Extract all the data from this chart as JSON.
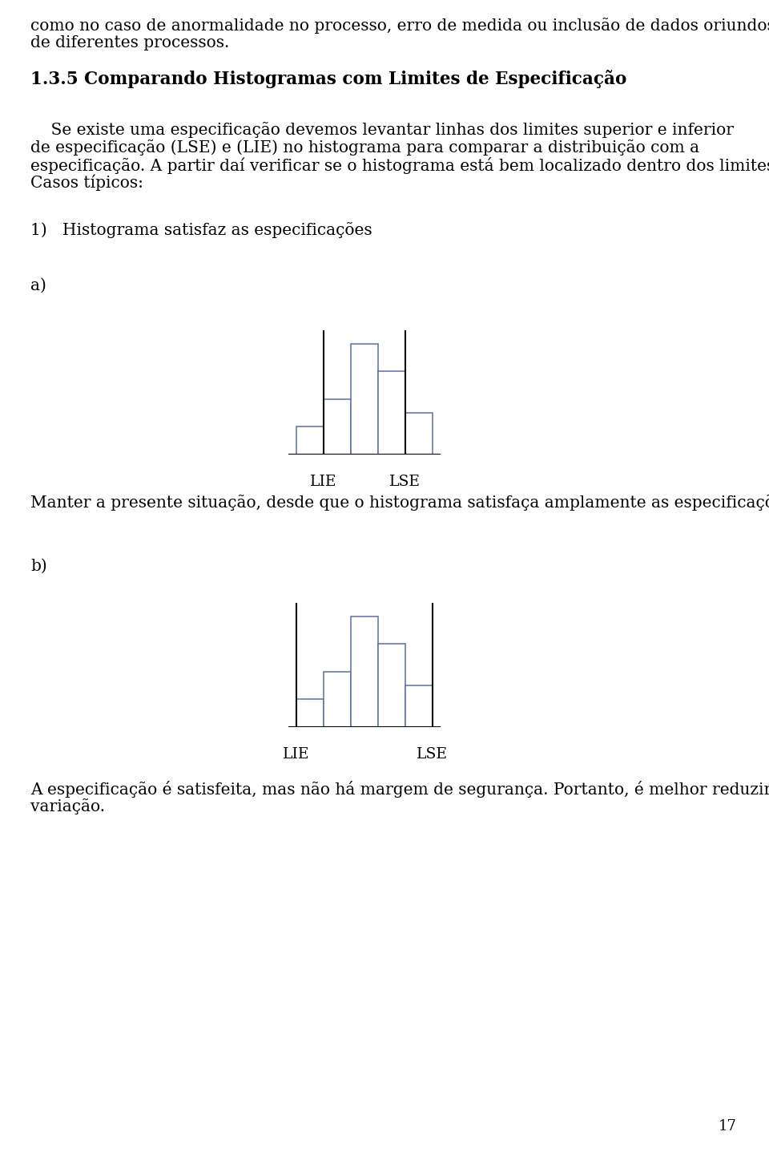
{
  "bg_color": "#ffffff",
  "text_color": "#000000",
  "page_number": "17",
  "top_text_line1": "como no caso de anormalidade no processo, erro de medida ou inclusão de dados oriundos",
  "top_text_line2": "de diferentes processos.",
  "section_title": "1.3.5 Comparando Histogramas com Limites de Especificação",
  "body_line1": "    Se existe uma especificação devemos levantar linhas dos limites superior e inferior",
  "body_line2": "de especificação (LSE) e (LIE) no histograma para comparar a distribuição com a",
  "body_line3": "especificação. A partir daí verificar se o histograma está bem localizado dentro dos limites.",
  "body_line4": "Casos típicos:",
  "item1_text": "1)   Histograma satisfaz as especificações",
  "label_a": "a)",
  "hist_a_values": [
    1,
    2,
    4,
    3,
    1.5
  ],
  "hist_a_lie_bar": 1,
  "hist_a_lse_bar": 4,
  "text_after_a": "Manter a presente situação, desde que o histograma satisfaça amplamente as especificações.",
  "label_b": "b)",
  "hist_b_values": [
    1,
    2,
    4,
    3,
    1.5
  ],
  "hist_b_lie_bar": 0,
  "hist_b_lse_bar": 5,
  "text_after_b_line1": "A especificação é satisfeita, mas não há margem de segurança. Portanto, é melhor reduzir a",
  "text_after_b_line2": "variação.",
  "bar_edge_color": "#5b6fa6",
  "bar_face_color": "#ffffff",
  "line_color": "#000000",
  "font_size_body": 14.5,
  "font_size_title": 15.5,
  "font_size_lie_lse": 13.5
}
